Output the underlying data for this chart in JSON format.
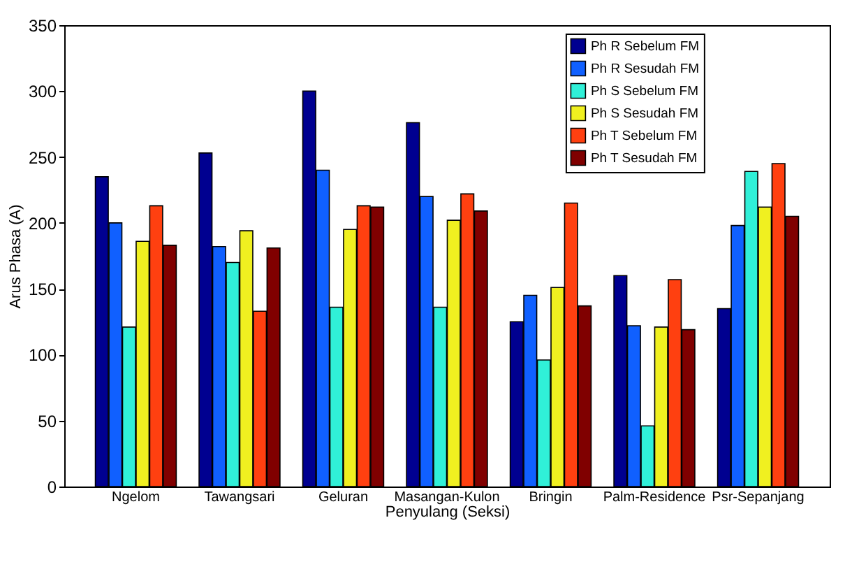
{
  "chart_data": {
    "type": "bar",
    "xlabel": "Penyulang (Seksi)",
    "ylabel": "Arus Phasa (A)",
    "categories": [
      "Ngelom",
      "Tawangsari",
      "Geluran",
      "Masangan-Kulon",
      "Bringin",
      "Palm-Residence",
      "Psr-Sepanjang"
    ],
    "series": [
      {
        "name": "Ph R Sebelum FM",
        "color": "#000090",
        "values": [
          235,
          253,
          300,
          276,
          125,
          160,
          135
        ]
      },
      {
        "name": "Ph R Sesudah FM",
        "color": "#1060ff",
        "values": [
          200,
          182,
          240,
          220,
          145,
          122,
          198
        ]
      },
      {
        "name": "Ph S Sebelum FM",
        "color": "#30f0d8",
        "values": [
          121,
          170,
          136,
          136,
          96,
          46,
          239
        ]
      },
      {
        "name": "Ph S Sesudah FM",
        "color": "#f0f020",
        "values": [
          186,
          194,
          195,
          202,
          151,
          121,
          212
        ]
      },
      {
        "name": "Ph T Sebelum FM",
        "color": "#ff4010",
        "values": [
          213,
          133,
          213,
          222,
          215,
          157,
          245
        ]
      },
      {
        "name": "Ph T Sesudah FM",
        "color": "#800000",
        "values": [
          183,
          181,
          212,
          209,
          137,
          119,
          205
        ]
      }
    ],
    "ylim": [
      0,
      350
    ],
    "yticks": [
      0,
      50,
      100,
      150,
      200,
      250,
      300,
      350
    ],
    "grid": false,
    "legend": "top right"
  }
}
